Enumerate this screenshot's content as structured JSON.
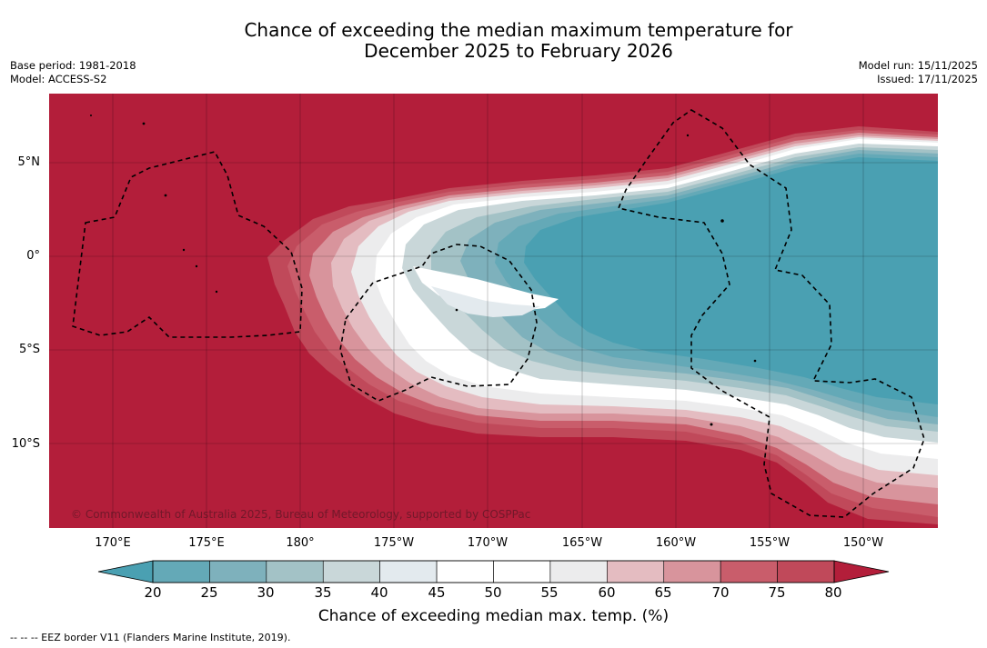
{
  "title": {
    "line1": "Chance of exceeding the median maximum temperature for",
    "line2": "December 2025 to February 2026"
  },
  "meta_left": {
    "base_period": "Base period: 1981-2018",
    "model": "Model: ACCESS-S2"
  },
  "meta_right": {
    "model_run": "Model run: 15/11/2025",
    "issued": "Issued: 17/11/2025"
  },
  "map": {
    "lat_labels": [
      "5°N",
      "0°",
      "5°S",
      "10°S"
    ],
    "lon_labels": [
      "170°E",
      "175°E",
      "180°",
      "175°W",
      "170°W",
      "165°W",
      "160°W",
      "155°W",
      "150°W"
    ],
    "copyright": "© Commonwealth of Australia 2025, Bureau of Meteorology, supported by COSPPac",
    "colors": {
      "high_80_plus": "#b31e3a",
      "band_75_80": "#c0495a",
      "band_70_75": "#c95d6b",
      "band_65_70": "#d8949c",
      "band_60_65": "#e4bcc1",
      "band_55_60": "#ececed",
      "band_50_55": "#ffffff",
      "band_40_45": "#e3eaee",
      "band_35_40": "#c9d7d9",
      "band_30_35": "#a3c2c6",
      "band_25_30": "#7eb1bc",
      "band_20_25": "#64a9b7",
      "low_below_20": "#4aa0b2"
    }
  },
  "colorbar": {
    "ticks": [
      "20",
      "25",
      "30",
      "35",
      "40",
      "45",
      "50",
      "55",
      "60",
      "65",
      "70",
      "75",
      "80"
    ],
    "label": "Chance of exceeding median max. temp. (%)",
    "low_extend_color": "#4aa0b2",
    "high_extend_color": "#b31e3a",
    "segment_colors": [
      "#64a9b7",
      "#7eb1bc",
      "#a3c2c6",
      "#c9d7d9",
      "#e3eaee",
      "#ffffff",
      "#ffffff",
      "#ececed",
      "#e4bcc1",
      "#d8949c",
      "#c95d6b",
      "#c0495a"
    ]
  },
  "footnote": "--  --  -- EEZ border V11 (Flanders Marine Institute, 2019)."
}
